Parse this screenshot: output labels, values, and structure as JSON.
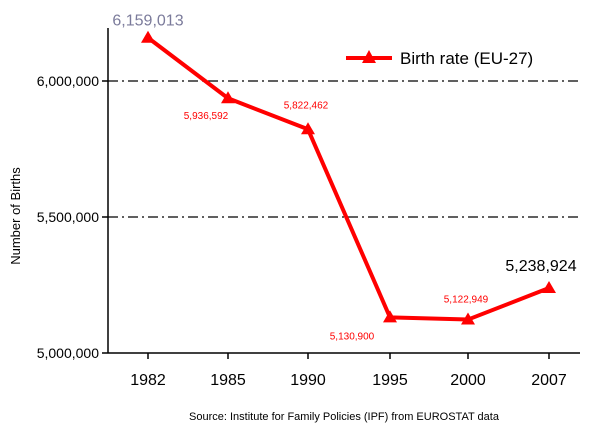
{
  "chart_data": {
    "type": "line",
    "title": "",
    "xlabel": "",
    "ylabel": "Number of Births",
    "categories": [
      "1982",
      "1985",
      "1990",
      "1995",
      "2000",
      "2007"
    ],
    "series": [
      {
        "name": "Birth rate (EU-27)",
        "values": [
          6159013,
          5936592,
          5822462,
          5130900,
          5122949,
          5238924
        ],
        "data_labels": [
          "6,159,013",
          "5,936,592",
          "5,822,462",
          "5,130,900",
          "5,122,949",
          "5,238,924"
        ],
        "color": "#ff0000"
      }
    ],
    "ylim": [
      5000000,
      6200000
    ],
    "yticks": [
      5000000,
      5500000,
      6000000
    ],
    "ytick_labels": [
      "5,000,000",
      "5,500,000",
      "6,000,000"
    ],
    "grid": "dash-dot horizontal at 5,500,000 and 6,000,000",
    "legend_position": "top-right",
    "source": "Source: Institute for Family Policies (IPF) from EUROSTAT data",
    "colors": {
      "line": "#ff0000",
      "first_label": "#7b7b9b",
      "last_label": "#000000",
      "grid": "#000000"
    }
  }
}
